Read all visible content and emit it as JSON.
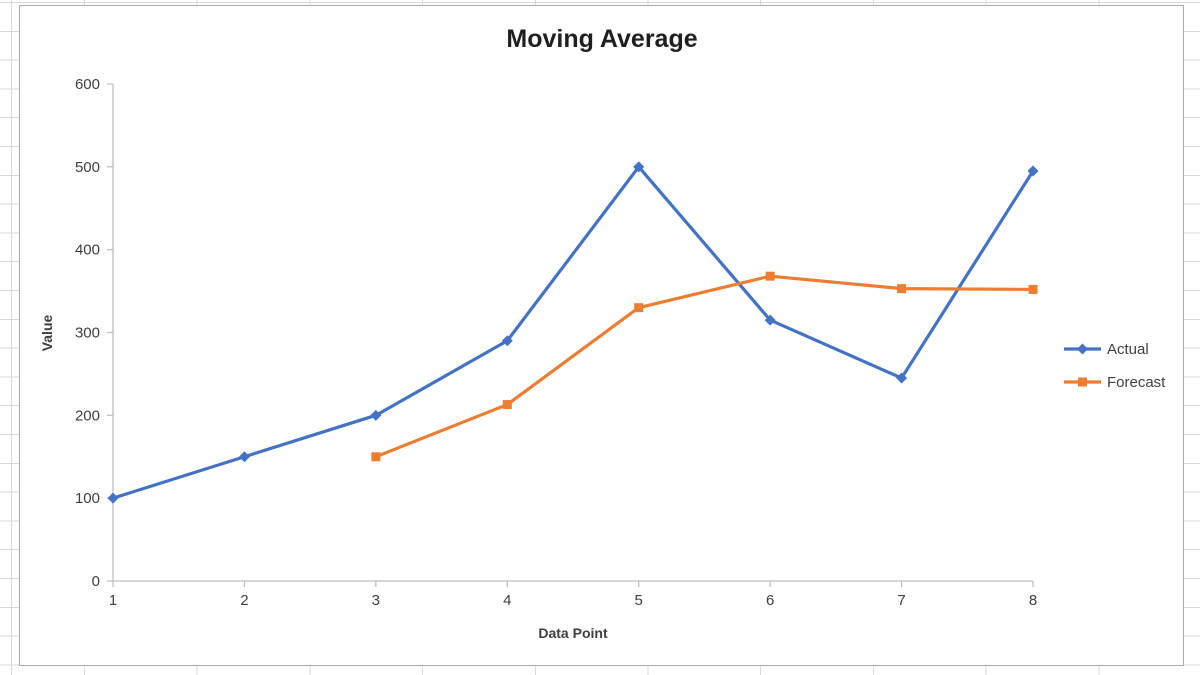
{
  "chart_data": {
    "type": "line",
    "title": "Moving Average",
    "xlabel": "Data Point",
    "ylabel": "Value",
    "x": [
      1,
      2,
      3,
      4,
      5,
      6,
      7,
      8
    ],
    "xlim": [
      1,
      8
    ],
    "ylim": [
      0,
      600
    ],
    "yticks": [
      0,
      100,
      200,
      300,
      400,
      500,
      600
    ],
    "grid": false,
    "legend_position": "right",
    "axis_color": "#BFBFBF",
    "series": [
      {
        "name": "Actual",
        "color": "#4472C4",
        "marker": "diamond",
        "x": [
          1,
          2,
          3,
          4,
          5,
          6,
          7,
          8
        ],
        "values": [
          100,
          150,
          200,
          290,
          500,
          315,
          245,
          495
        ]
      },
      {
        "name": "Forecast",
        "color": "#ED7D31",
        "marker": "square",
        "x": [
          3,
          4,
          5,
          6,
          7,
          8
        ],
        "values": [
          150,
          213,
          330,
          368,
          353,
          352
        ]
      }
    ]
  }
}
